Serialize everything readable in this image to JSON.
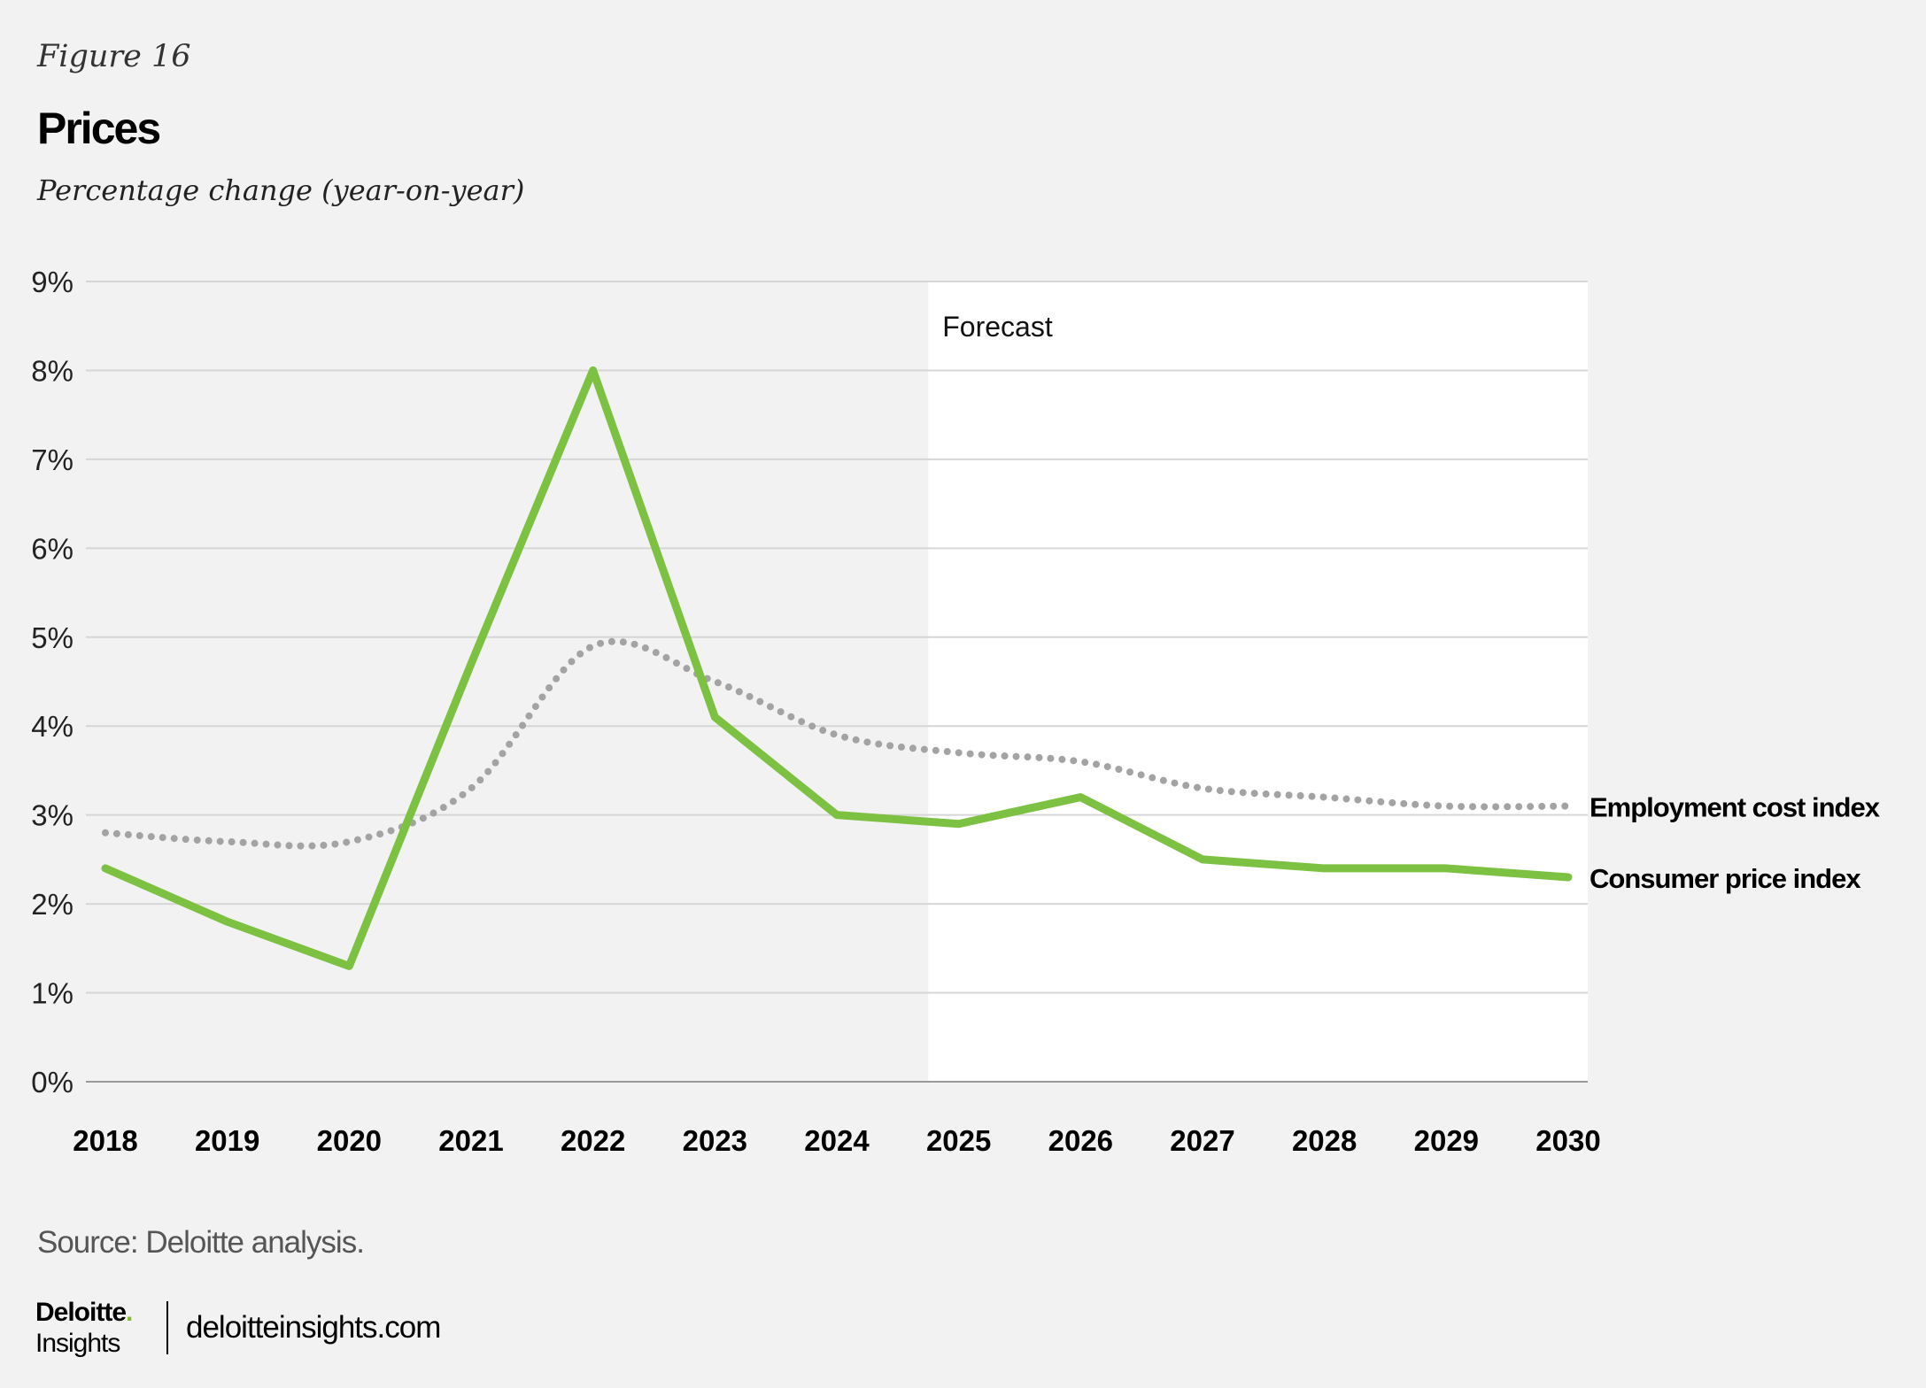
{
  "header": {
    "figure_label": "Figure 16",
    "title": "Prices",
    "subtitle": "Percentage change (year-on-year)"
  },
  "chart_data": {
    "type": "line",
    "title": "Prices",
    "ylabel": "Percentage change (year-on-year)",
    "xlabel": "",
    "x": [
      "2018",
      "2019",
      "2020",
      "2021",
      "2022",
      "2023",
      "2024",
      "2025",
      "2026",
      "2027",
      "2028",
      "2029",
      "2030"
    ],
    "ylim": [
      0,
      9
    ],
    "yticks": [
      "0%",
      "1%",
      "2%",
      "3%",
      "4%",
      "5%",
      "6%",
      "7%",
      "8%",
      "9%"
    ],
    "grid": true,
    "forecast_label": "Forecast",
    "forecast_start": 2024.75,
    "legend_placement": "right (direct labels)",
    "series": [
      {
        "name": "Employment cost index",
        "color": "#a3a3a3",
        "style": "dotted",
        "values": [
          2.8,
          2.7,
          2.7,
          3.3,
          4.9,
          4.5,
          3.9,
          3.7,
          3.6,
          3.3,
          3.2,
          3.1,
          3.1
        ]
      },
      {
        "name": "Consumer price index",
        "color": "#7dc142",
        "style": "solid",
        "values": [
          2.4,
          1.8,
          1.3,
          4.7,
          8.0,
          4.1,
          3.0,
          2.9,
          3.2,
          2.5,
          2.4,
          2.4,
          2.3
        ]
      }
    ]
  },
  "footer": {
    "source": "Source: Deloitte analysis.",
    "logo_brand": "Deloitte",
    "logo_dot": ".",
    "logo_sub": "Insights",
    "site": "deloitteinsights.com"
  }
}
